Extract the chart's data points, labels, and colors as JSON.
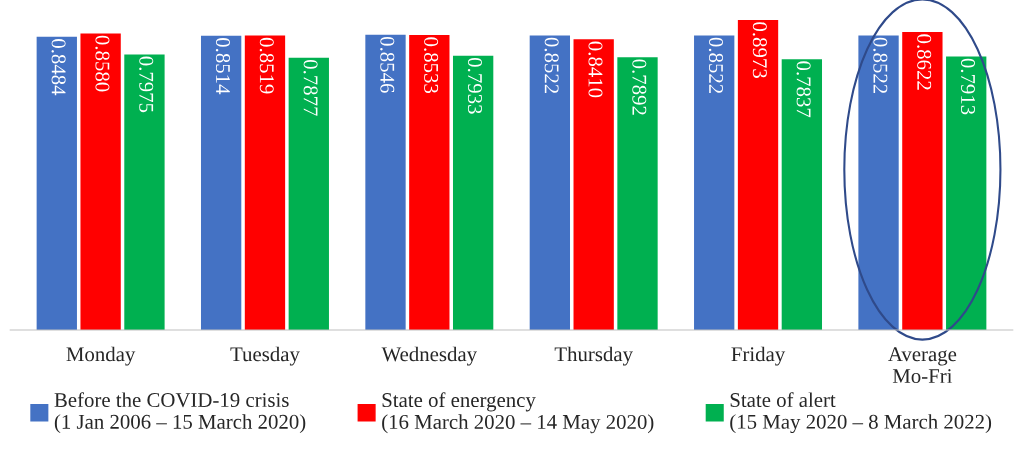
{
  "chart_data": {
    "type": "bar",
    "categories": [
      "Monday",
      "Tuesday",
      "Wednesday",
      "Thursday",
      "Friday",
      "Average\nMo-Fri"
    ],
    "series": [
      {
        "name": "Before the COVID-19 crisis\n(1 Jan 2006 – 15 March 2020)",
        "color": "#4472c4",
        "values": [
          0.8484,
          0.8514,
          0.8546,
          0.8522,
          0.8522,
          0.8522
        ],
        "value_labels": [
          "0.8484",
          "0.8514",
          "0.8546",
          "0.8522",
          "0.8522",
          "0.8522"
        ]
      },
      {
        "name": "State of energency\n(16 March 2020 – 14 May 2020)",
        "color": "#ff0000",
        "values": [
          0.858,
          0.8519,
          0.8533,
          0.841,
          0.8973,
          0.8622
        ],
        "value_labels": [
          "0.8580",
          "0.8519",
          "0.8533",
          "0.8410",
          "0.8973",
          "0.8622"
        ]
      },
      {
        "name": "State of alert\n(15 May 2020 – 8 March 2022)",
        "color": "#00b050",
        "values": [
          0.7975,
          0.7877,
          0.7933,
          0.7892,
          0.7837,
          0.7913
        ],
        "value_labels": [
          "0.7975",
          "0.7877",
          "0.7933",
          "0.7892",
          "0.7837",
          "0.7913"
        ]
      }
    ],
    "legend": "bottom",
    "grid": false
  }
}
